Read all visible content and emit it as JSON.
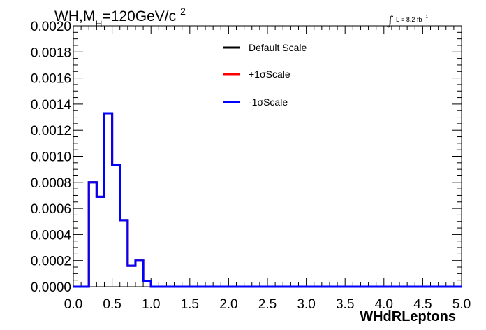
{
  "chart_data": {
    "type": "line",
    "title_main": "WH,M",
    "title_sub": "H",
    "title_rest": "=120GeV/c",
    "title_sup": "2",
    "lumi_label": "L = 8.2 fb",
    "lumi_sup": "-1",
    "xlabel": "WHdRLeptons",
    "xlim": [
      0.0,
      5.0
    ],
    "ylim": [
      0.0,
      0.002
    ],
    "x_ticks": [
      "0.0",
      "0.5",
      "1.0",
      "1.5",
      "2.0",
      "2.5",
      "3.0",
      "3.5",
      "4.0",
      "4.5",
      "5.0"
    ],
    "y_ticks": [
      "0.0000",
      "0.0002",
      "0.0004",
      "0.0006",
      "0.0008",
      "0.0010",
      "0.0012",
      "0.0014",
      "0.0016",
      "0.0018",
      "0.0020"
    ],
    "bin_edges": [
      0.0,
      0.1,
      0.2,
      0.3,
      0.4,
      0.5,
      0.6,
      0.7,
      0.8,
      0.9,
      1.0,
      1.1,
      1.2,
      1.3,
      1.4,
      1.5,
      1.6,
      1.7,
      1.8,
      1.9,
      2.0,
      2.1,
      2.2,
      2.3,
      2.4,
      2.5,
      2.6,
      2.7,
      2.8,
      2.9,
      3.0,
      3.1,
      3.2,
      3.3,
      3.4,
      3.5,
      3.6,
      3.7,
      3.8,
      3.9,
      4.0,
      4.1,
      4.2,
      4.3,
      4.4,
      4.5,
      4.6,
      4.7,
      4.8,
      4.9,
      5.0
    ],
    "series": [
      {
        "name": "Default Scale",
        "color": "#000000",
        "values": [
          0,
          0,
          0.0008,
          0.00069,
          0.00133,
          0.00093,
          0.00051,
          0.00016,
          0.0002,
          4e-05,
          0,
          0,
          0,
          0,
          0,
          0,
          0,
          0,
          0,
          0,
          0,
          0,
          0,
          0,
          0,
          0,
          0,
          0,
          0,
          0,
          0,
          0,
          0,
          0,
          0,
          0,
          0,
          0,
          0,
          0,
          0,
          0,
          0,
          0,
          0,
          0,
          0,
          0,
          0,
          0
        ]
      },
      {
        "name": "+1σScale",
        "color": "#ff0000",
        "values": [
          0,
          0,
          0.0008,
          0.00069,
          0.00133,
          0.00093,
          0.00051,
          0.00016,
          0.0002,
          4e-05,
          0,
          0,
          0,
          0,
          0,
          0,
          0,
          0,
          0,
          0,
          0,
          0,
          0,
          0,
          0,
          0,
          0,
          0,
          0,
          0,
          0,
          0,
          0,
          0,
          0,
          0,
          0,
          0,
          0,
          0,
          0,
          0,
          0,
          0,
          0,
          0,
          0,
          0,
          0,
          0
        ]
      },
      {
        "name": "-1σScale",
        "color": "#0000ff",
        "values": [
          0,
          0,
          0.0008,
          0.00069,
          0.00133,
          0.00093,
          0.00051,
          0.00016,
          0.0002,
          4e-05,
          0,
          0,
          0,
          0,
          0,
          0,
          0,
          0,
          0,
          0,
          0,
          0,
          0,
          0,
          0,
          0,
          0,
          0,
          0,
          0,
          0,
          0,
          0,
          0,
          0,
          0,
          0,
          0,
          0,
          0,
          0,
          0,
          0,
          0,
          0,
          0,
          0,
          0,
          0,
          0
        ]
      }
    ],
    "legend": [
      "Default Scale",
      "+1σScale",
      "-1σScale"
    ],
    "legend_position": "top-center",
    "grid": false
  }
}
